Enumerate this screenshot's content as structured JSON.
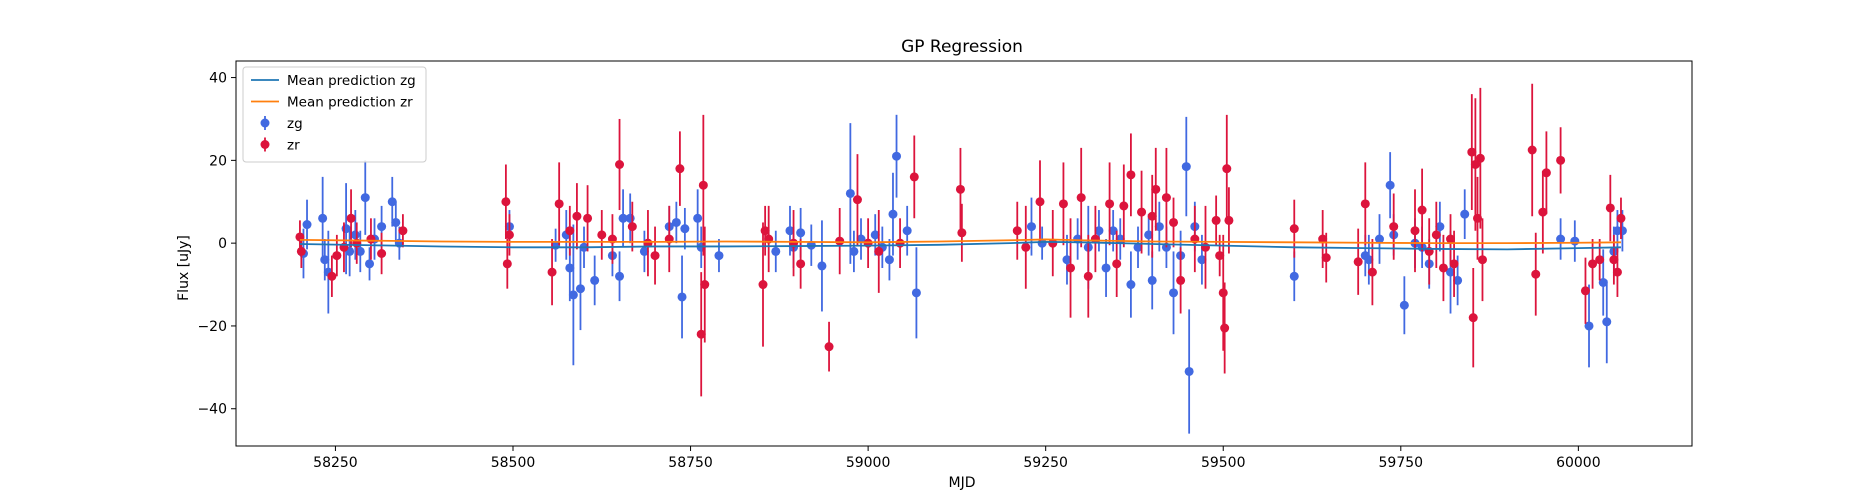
{
  "chart_data": {
    "type": "scatter",
    "title": "GP Regression",
    "xlabel": "MJD",
    "ylabel": "Flux [uJy]",
    "xlim": [
      58110,
      60160
    ],
    "ylim": [
      -49,
      44
    ],
    "xticks": [
      58250,
      58500,
      58750,
      59000,
      59250,
      59500,
      59750,
      60000
    ],
    "yticks": [
      -40,
      -20,
      0,
      20,
      40
    ],
    "grid": false,
    "legend_position": "top-left",
    "colors": {
      "zg_points": "#4169e1",
      "zr_points": "#dc143c",
      "zg_mean": "#1f77b4",
      "zr_mean": "#ff7f0e"
    },
    "series": [
      {
        "name": "Mean prediction zg",
        "kind": "line",
        "x": [
          58200,
          58300,
          58400,
          58500,
          58600,
          58700,
          58800,
          58900,
          59000,
          59100,
          59200,
          59250,
          59300,
          59400,
          59500,
          59600,
          59700,
          59800,
          59900,
          60000,
          60060
        ],
        "y": [
          -0.2,
          -0.5,
          -0.8,
          -1.0,
          -1.0,
          -0.8,
          -0.8,
          -0.7,
          -0.6,
          -0.4,
          0.0,
          0.3,
          0.2,
          -0.2,
          -0.6,
          -1.0,
          -1.2,
          -1.4,
          -1.5,
          -1.2,
          -1.0
        ]
      },
      {
        "name": "Mean prediction zr",
        "kind": "line",
        "x": [
          58200,
          58300,
          58400,
          58500,
          58600,
          58700,
          58800,
          58900,
          59000,
          59100,
          59200,
          59250,
          59300,
          59400,
          59500,
          59600,
          59700,
          59800,
          59900,
          60000,
          60060
        ],
        "y": [
          0.8,
          0.6,
          0.4,
          0.3,
          0.3,
          0.3,
          0.4,
          0.3,
          0.2,
          0.4,
          0.7,
          0.9,
          0.7,
          0.4,
          0.3,
          0.2,
          0.1,
          0.0,
          0.0,
          0.1,
          0.2
        ]
      },
      {
        "name": "zg",
        "kind": "errorbar",
        "points": [
          [
            58205,
            -2.5,
            6
          ],
          [
            58210,
            4.5,
            6
          ],
          [
            58232,
            6,
            10
          ],
          [
            58235,
            -4,
            5
          ],
          [
            58240,
            -7,
            10
          ],
          [
            58265,
            3.5,
            11
          ],
          [
            58270,
            -2,
            6
          ],
          [
            58278,
            2,
            6
          ],
          [
            58285,
            -2,
            5
          ],
          [
            58292,
            11,
            9
          ],
          [
            58298,
            -5,
            4
          ],
          [
            58305,
            1,
            5
          ],
          [
            58315,
            4,
            5
          ],
          [
            58330,
            10,
            6
          ],
          [
            58335,
            5,
            5
          ],
          [
            58340,
            0,
            4
          ],
          [
            58495,
            4,
            4
          ],
          [
            58560,
            -0.5,
            4
          ],
          [
            58575,
            2,
            6
          ],
          [
            58580,
            -6,
            8
          ],
          [
            58585,
            -12.5,
            17
          ],
          [
            58595,
            -11,
            10
          ],
          [
            58600,
            -1,
            5
          ],
          [
            58615,
            -9,
            6
          ],
          [
            58640,
            -3,
            5
          ],
          [
            58650,
            -8,
            6
          ],
          [
            58655,
            6,
            7
          ],
          [
            58665,
            6,
            6
          ],
          [
            58685,
            -2,
            5
          ],
          [
            58720,
            4,
            5
          ],
          [
            58730,
            5,
            5
          ],
          [
            58738,
            -13,
            10
          ],
          [
            58742,
            3.5,
            5
          ],
          [
            58760,
            6,
            7
          ],
          [
            58765,
            -1,
            5
          ],
          [
            58790,
            -3,
            4
          ],
          [
            58870,
            -2,
            5
          ],
          [
            58890,
            3,
            6
          ],
          [
            58895,
            -1,
            5
          ],
          [
            58905,
            2.5,
            6
          ],
          [
            58920,
            -0.5,
            5
          ],
          [
            58935,
            -5.5,
            11
          ],
          [
            58975,
            12,
            17
          ],
          [
            58980,
            -2,
            5
          ],
          [
            58990,
            1,
            5
          ],
          [
            59010,
            2,
            5
          ],
          [
            59020,
            -1,
            5
          ],
          [
            59030,
            -4,
            5
          ],
          [
            59035,
            7,
            10
          ],
          [
            59040,
            21,
            10
          ],
          [
            59055,
            3,
            6
          ],
          [
            59068,
            -12,
            11
          ],
          [
            59230,
            4,
            7
          ],
          [
            59245,
            0,
            4
          ],
          [
            59280,
            -4,
            6
          ],
          [
            59295,
            1,
            5
          ],
          [
            59310,
            -1,
            10
          ],
          [
            59325,
            3,
            5
          ],
          [
            59335,
            -6,
            7
          ],
          [
            59345,
            3,
            5
          ],
          [
            59355,
            1,
            5
          ],
          [
            59370,
            -10,
            8
          ],
          [
            59380,
            -1,
            5
          ],
          [
            59395,
            2,
            5
          ],
          [
            59400,
            -9,
            7
          ],
          [
            59410,
            4,
            6
          ],
          [
            59420,
            -1,
            5
          ],
          [
            59430,
            -12,
            10
          ],
          [
            59440,
            -3,
            6
          ],
          [
            59448,
            18.5,
            12
          ],
          [
            59452,
            -31,
            15
          ],
          [
            59460,
            4,
            6
          ],
          [
            59470,
            -4,
            6
          ],
          [
            59600,
            -8,
            6
          ],
          [
            59700,
            -3,
            5
          ],
          [
            59705,
            -4,
            6
          ],
          [
            59720,
            1,
            6
          ],
          [
            59735,
            14,
            8
          ],
          [
            59740,
            2,
            5
          ],
          [
            59755,
            -15,
            7
          ],
          [
            59770,
            0,
            6
          ],
          [
            59780,
            -1,
            5
          ],
          [
            59790,
            -5,
            6
          ],
          [
            59805,
            4,
            6
          ],
          [
            59820,
            -7,
            10
          ],
          [
            59830,
            -9,
            6
          ],
          [
            59840,
            7,
            6
          ],
          [
            59975,
            1,
            5
          ],
          [
            59995,
            0.5,
            5
          ],
          [
            60015,
            -20,
            10
          ],
          [
            60035,
            -9.5,
            8
          ],
          [
            60040,
            -19,
            10
          ],
          [
            60050,
            -2,
            6
          ],
          [
            60055,
            3,
            5
          ],
          [
            60062,
            3,
            5
          ]
        ]
      },
      {
        "name": "zr",
        "kind": "errorbar",
        "points": [
          [
            58200,
            1.5,
            4
          ],
          [
            58202,
            -2,
            4
          ],
          [
            58245,
            -8,
            5
          ],
          [
            58252,
            -3,
            5
          ],
          [
            58262,
            -1,
            6
          ],
          [
            58272,
            6,
            7
          ],
          [
            58280,
            0,
            5
          ],
          [
            58300,
            1,
            5
          ],
          [
            58315,
            -2.5,
            5
          ],
          [
            58345,
            3,
            4
          ],
          [
            58490,
            10,
            9
          ],
          [
            58492,
            -5,
            6
          ],
          [
            58495,
            2,
            5
          ],
          [
            58555,
            -7,
            8
          ],
          [
            58565,
            9.5,
            10
          ],
          [
            58580,
            3,
            6
          ],
          [
            58590,
            6.5,
            8
          ],
          [
            58605,
            6,
            8
          ],
          [
            58625,
            2,
            6
          ],
          [
            58640,
            1,
            6
          ],
          [
            58650,
            19,
            11
          ],
          [
            58668,
            4,
            6
          ],
          [
            58690,
            0,
            8
          ],
          [
            58700,
            -3,
            7
          ],
          [
            58720,
            1,
            8
          ],
          [
            58735,
            18,
            9
          ],
          [
            58765,
            -22,
            15
          ],
          [
            58768,
            14,
            17
          ],
          [
            58770,
            -10,
            14
          ],
          [
            58852,
            -10,
            15
          ],
          [
            58855,
            3,
            6
          ],
          [
            58860,
            1,
            8
          ],
          [
            58895,
            0,
            8
          ],
          [
            58905,
            -5,
            6
          ],
          [
            58945,
            -25,
            6
          ],
          [
            58960,
            0.5,
            8
          ],
          [
            58985,
            10.5,
            11
          ],
          [
            59000,
            0,
            6
          ],
          [
            59015,
            -2,
            10
          ],
          [
            59045,
            0,
            6
          ],
          [
            59065,
            16,
            10
          ],
          [
            59130,
            13,
            10
          ],
          [
            59132,
            2.5,
            7
          ],
          [
            59210,
            3,
            7
          ],
          [
            59222,
            -1,
            10
          ],
          [
            59242,
            10,
            10
          ],
          [
            59260,
            0,
            8
          ],
          [
            59275,
            9.5,
            10
          ],
          [
            59285,
            -6,
            12
          ],
          [
            59300,
            11,
            12
          ],
          [
            59310,
            -8,
            10
          ],
          [
            59320,
            1,
            8
          ],
          [
            59340,
            9.5,
            10
          ],
          [
            59350,
            -5,
            8
          ],
          [
            59360,
            9,
            10
          ],
          [
            59370,
            16.5,
            10
          ],
          [
            59385,
            7.5,
            10
          ],
          [
            59400,
            6.5,
            10
          ],
          [
            59405,
            13,
            10
          ],
          [
            59420,
            11,
            12
          ],
          [
            59430,
            5,
            6
          ],
          [
            59440,
            -9,
            8
          ],
          [
            59460,
            1,
            8
          ],
          [
            59475,
            -1,
            10
          ],
          [
            59490,
            5.5,
            6
          ],
          [
            59495,
            -3,
            5
          ],
          [
            59500,
            -12,
            14
          ],
          [
            59502,
            -20.5,
            11
          ],
          [
            59505,
            18,
            13
          ],
          [
            59508,
            5.5,
            8
          ],
          [
            59600,
            3.5,
            7
          ],
          [
            59640,
            1,
            7
          ],
          [
            59645,
            -3.5,
            6
          ],
          [
            59690,
            -4.5,
            8
          ],
          [
            59700,
            9.5,
            10
          ],
          [
            59710,
            -7,
            8
          ],
          [
            59740,
            4,
            8
          ],
          [
            59770,
            3,
            10
          ],
          [
            59780,
            8,
            10
          ],
          [
            59790,
            -2,
            8
          ],
          [
            59800,
            2,
            8
          ],
          [
            59810,
            -6,
            8
          ],
          [
            59820,
            1,
            6
          ],
          [
            59825,
            -5,
            8
          ],
          [
            59850,
            22,
            14
          ],
          [
            59852,
            -18,
            12
          ],
          [
            59855,
            19,
            16
          ],
          [
            59858,
            6,
            10
          ],
          [
            59862,
            20.5,
            17
          ],
          [
            59865,
            -4,
            10
          ],
          [
            59935,
            22.5,
            16
          ],
          [
            59940,
            -7.5,
            10
          ],
          [
            59950,
            7.5,
            10
          ],
          [
            59955,
            17,
            10
          ],
          [
            59975,
            20,
            8
          ],
          [
            60010,
            -11.5,
            8
          ],
          [
            60020,
            -5,
            6
          ],
          [
            60030,
            -4,
            5
          ],
          [
            60045,
            8.5,
            8
          ],
          [
            60050,
            -4,
            6
          ],
          [
            60055,
            -7,
            6
          ],
          [
            60060,
            6,
            5
          ]
        ]
      }
    ],
    "legend": [
      {
        "label": "Mean prediction zg",
        "kind": "line",
        "color": "#1f77b4"
      },
      {
        "label": "Mean prediction zr",
        "kind": "line",
        "color": "#ff7f0e"
      },
      {
        "label": "zg",
        "kind": "errorbar",
        "color": "#4169e1"
      },
      {
        "label": "zr",
        "kind": "errorbar",
        "color": "#dc143c"
      }
    ]
  }
}
